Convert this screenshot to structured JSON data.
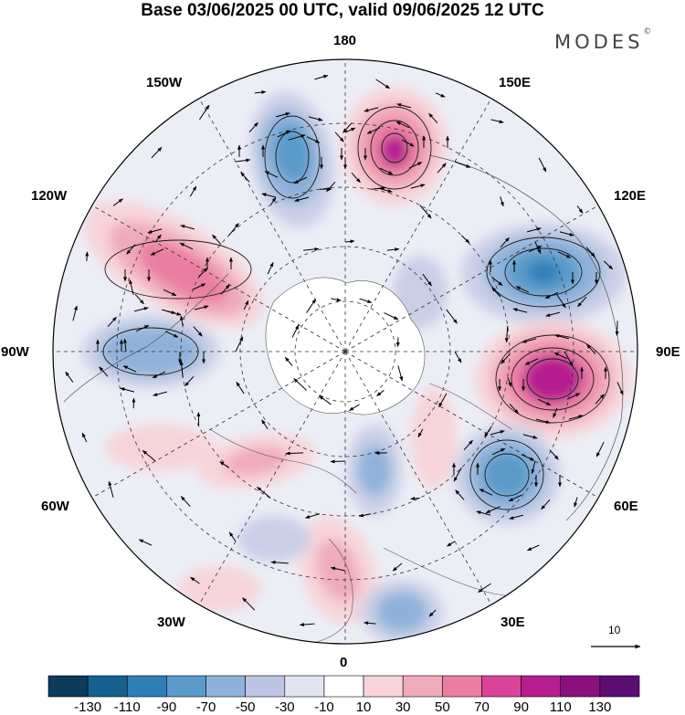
{
  "title": "Base 03/06/2025 00 UTC, valid 09/06/2025 12 UTC",
  "brand": {
    "name": "MODES",
    "mark": "©"
  },
  "longitudes": {
    "lon_180": "180",
    "lon_150e": "150E",
    "lon_120e": "120E",
    "lon_90e": "90E",
    "lon_60e": "60E",
    "lon_30e": "30E",
    "lon_0": "0",
    "lon_30w": "30W",
    "lon_60w": "60W",
    "lon_90w": "90W",
    "lon_120w": "120W",
    "lon_150w": "150W"
  },
  "reference_vector": {
    "value": "10"
  },
  "colorbar": {
    "labels": [
      "-130",
      "-110",
      "-90",
      "-70",
      "-50",
      "-30",
      "-10",
      "10",
      "30",
      "50",
      "70",
      "90",
      "110",
      "130"
    ],
    "colors": [
      "#0c3b5c",
      "#14608f",
      "#2e7fb6",
      "#5a9bcb",
      "#8fb2da",
      "#bcc6e4",
      "#e3e4f1",
      "#ffffff",
      "#f7d4d9",
      "#f0abbb",
      "#ea7ea2",
      "#d9449a",
      "#b51e8f",
      "#8a0f7f",
      "#5c0e75"
    ]
  },
  "anomaly_colors": {
    "neg_strong": "#2e7fb6",
    "neg_mid": "#5a9bcb",
    "neg_weak": "#8fb2da",
    "neg_faint": "#c9cfe6",
    "pos_faint": "#f7d4d9",
    "pos_weak": "#f0abbb",
    "pos_mid": "#ea7ea2",
    "pos_strong": "#b51e8f"
  }
}
